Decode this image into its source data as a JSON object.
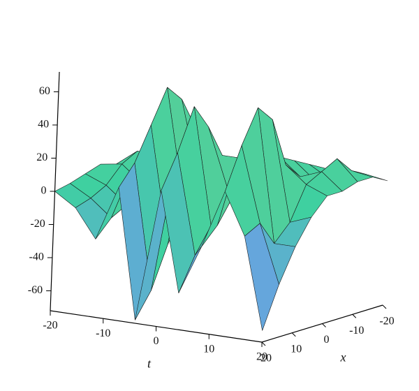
{
  "chart_data": {
    "type": "surface",
    "t_label": "t",
    "x_label": "x",
    "t": [
      -20,
      -16,
      -12,
      -8,
      -4,
      0,
      4,
      8,
      12,
      16,
      20
    ],
    "x": [
      20,
      15,
      10,
      5,
      0,
      -5,
      -10,
      -15,
      -20
    ],
    "z": [
      [
        0,
        -8,
        -25,
        8,
        -70,
        10,
        -50,
        -20,
        15,
        -10,
        -65
      ],
      [
        2,
        -5,
        -15,
        20,
        -55,
        30,
        -30,
        -10,
        40,
        -5,
        -40
      ],
      [
        5,
        0,
        -10,
        40,
        -30,
        55,
        -15,
        5,
        60,
        -20,
        -20
      ],
      [
        8,
        10,
        0,
        60,
        -10,
        40,
        5,
        20,
        50,
        -10,
        -5
      ],
      [
        5,
        15,
        15,
        50,
        0,
        20,
        20,
        30,
        20,
        10,
        5
      ],
      [
        3,
        10,
        20,
        30,
        5,
        10,
        15,
        20,
        10,
        15,
        5
      ],
      [
        2,
        5,
        15,
        10,
        10,
        5,
        10,
        15,
        5,
        20,
        8
      ],
      [
        1,
        3,
        8,
        5,
        5,
        3,
        5,
        10,
        3,
        10,
        8
      ],
      [
        0,
        2,
        4,
        2,
        2,
        1,
        2,
        5,
        2,
        5,
        3
      ]
    ],
    "tlim": [
      -20,
      20
    ],
    "tticks": [
      -20,
      -10,
      0,
      10,
      20
    ],
    "xlim": [
      20,
      -20
    ],
    "xticks": [
      20,
      10,
      0,
      -10,
      -20
    ],
    "zlim": [
      -72,
      72
    ],
    "zticks": [
      -60,
      -40,
      -20,
      0,
      20,
      40,
      60
    ],
    "colorscale": [
      "#b06ee0",
      "#6c9ee8",
      "#3fd0a0",
      "#5ccf98",
      "#c46a92"
    ]
  }
}
